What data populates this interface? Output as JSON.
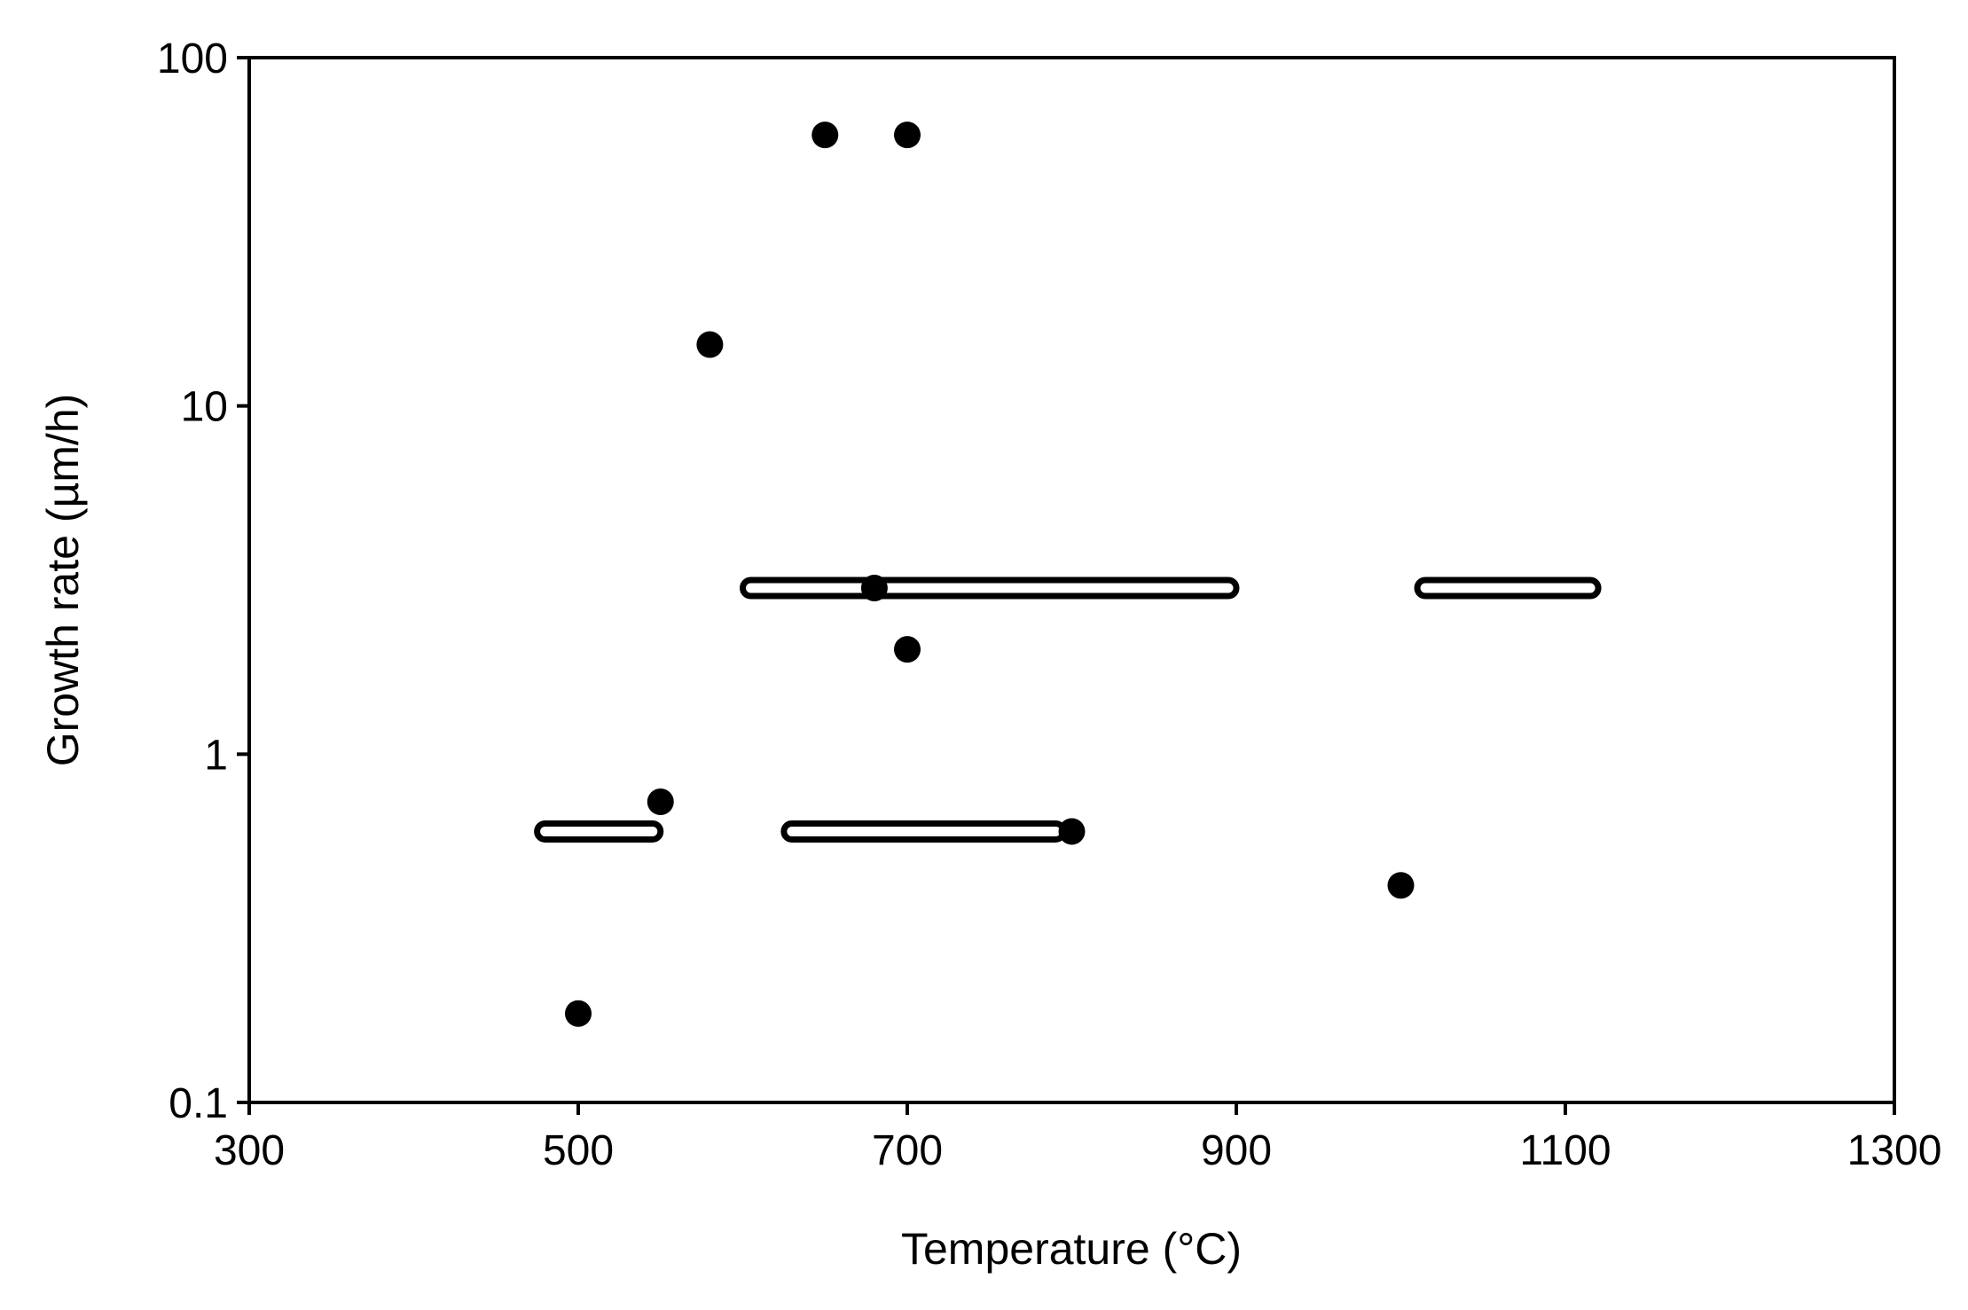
{
  "chart_data": {
    "type": "scatter",
    "title": "",
    "xlabel": "Temperature (°C)",
    "ylabel": "Growth rate (µm/h)",
    "xlim": [
      300,
      1300
    ],
    "ylim": [
      0.1,
      100
    ],
    "y_scale": "log",
    "x_ticks": [
      "300",
      "500",
      "700",
      "900",
      "1100",
      "1300"
    ],
    "y_ticks": [
      "0.1",
      "1",
      "10",
      "100"
    ],
    "grid": false,
    "legend": "none",
    "colors": {
      "points": "#000000",
      "range_fill": "#ffffff",
      "range_stroke": "#000000",
      "axes": "#000000"
    },
    "series": [
      {
        "kind": "points",
        "points": [
          {
            "x": 500,
            "y": 0.18
          },
          {
            "x": 550,
            "y": 0.73
          },
          {
            "x": 580,
            "y": 15
          },
          {
            "x": 650,
            "y": 60
          },
          {
            "x": 700,
            "y": 60
          },
          {
            "x": 680,
            "y": 3
          },
          {
            "x": 700,
            "y": 2
          },
          {
            "x": 800,
            "y": 0.6
          },
          {
            "x": 1000,
            "y": 0.42
          }
        ]
      },
      {
        "kind": "ranges",
        "ranges": [
          {
            "x_start": 475,
            "x_end": 550,
            "y": 0.6
          },
          {
            "x_start": 625,
            "x_end": 795,
            "y": 0.6
          },
          {
            "x_start": 600,
            "x_end": 900,
            "y": 3
          },
          {
            "x_start": 1010,
            "x_end": 1120,
            "y": 3
          }
        ]
      }
    ]
  }
}
